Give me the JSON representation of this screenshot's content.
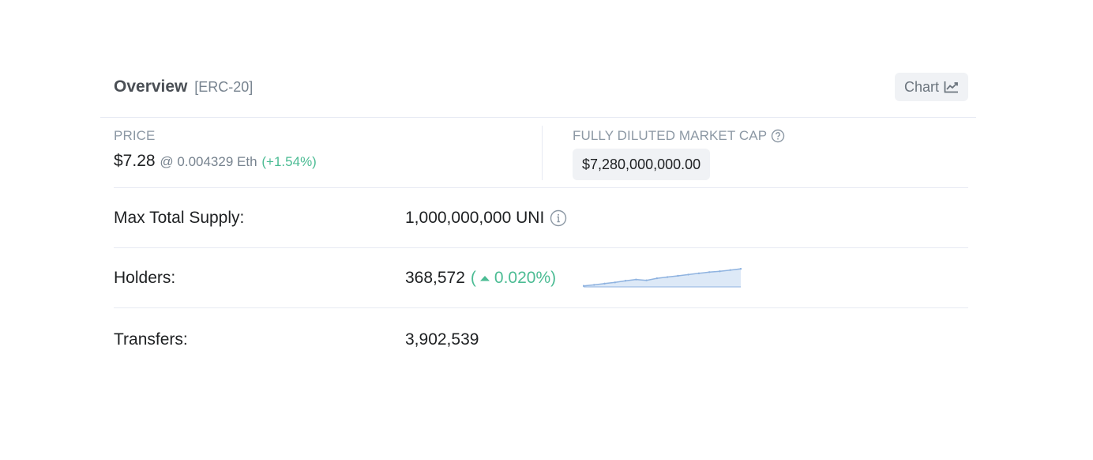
{
  "overview": {
    "title": "Overview",
    "tag": "[ERC-20]",
    "chart_button": "Chart",
    "chart_icon": "line-chart-icon"
  },
  "price": {
    "label": "PRICE",
    "usd": "$7.28",
    "eth": "@ 0.004329 Eth",
    "change": "(+1.54%)"
  },
  "market_cap": {
    "label": "FULLY DILUTED MARKET CAP",
    "value": "$7,280,000,000.00",
    "help_icon": "question-circle-icon"
  },
  "rows": {
    "supply": {
      "label": "Max Total Supply:",
      "value": "1,000,000,000 UNI",
      "icon": "info-circle-icon"
    },
    "holders": {
      "label": "Holders:",
      "value": "368,572",
      "change_open": "(",
      "change_value": "0.020%)",
      "trend_icon": "caret-up-icon",
      "sparkline": [
        0.05,
        0.1,
        0.16,
        0.22,
        0.3,
        0.36,
        0.32,
        0.42,
        0.48,
        0.54,
        0.6,
        0.66,
        0.72,
        0.76,
        0.82,
        0.88
      ]
    },
    "transfers": {
      "label": "Transfers:",
      "value": "3,902,539"
    }
  },
  "colors": {
    "positive": "#4cbc94",
    "sparkline_line": "#8fb3e0",
    "sparkline_fill": "#dde9f7"
  }
}
